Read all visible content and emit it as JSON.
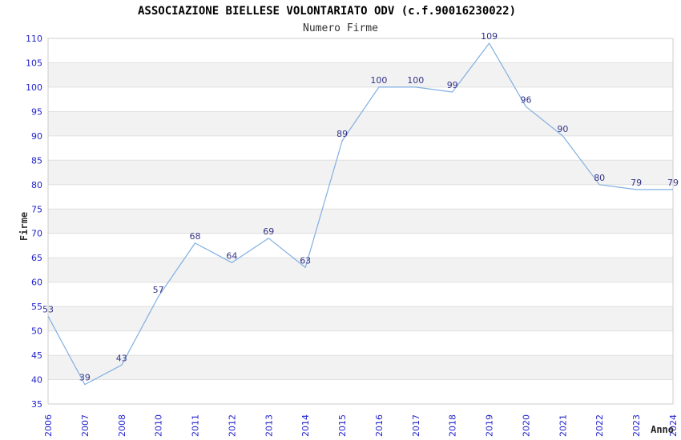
{
  "chart_data": {
    "type": "line",
    "title": "ASSOCIAZIONE BIELLESE VOLONTARIATO ODV (c.f.90016230022)",
    "subtitle": "Numero Firme",
    "xlabel": "Anno",
    "ylabel": "Firme",
    "categories": [
      "2006",
      "2007",
      "2008",
      "2010",
      "2011",
      "2012",
      "2013",
      "2014",
      "2015",
      "2016",
      "2017",
      "2018",
      "2019",
      "2020",
      "2021",
      "2022",
      "2023",
      "2024"
    ],
    "values": [
      53,
      39,
      43,
      57,
      68,
      64,
      69,
      63,
      89,
      100,
      100,
      99,
      109,
      96,
      90,
      80,
      79,
      79
    ],
    "ylim": [
      35,
      110
    ],
    "ytick_step": 5,
    "ytick_labels": [
      "35",
      "40",
      "45",
      "50",
      "55",
      "60",
      "65",
      "70",
      "75",
      "80",
      "85",
      "90",
      "95",
      "100",
      "105",
      "110"
    ],
    "grid": true,
    "banded_background": true,
    "legend": "none",
    "x_tick_rotation": -90,
    "colors": {
      "line": "#82afe1",
      "data_label": "#333388",
      "tick_label": "#2222cc",
      "band": "#f2f2f2",
      "gridline": "#e0e0e0",
      "border": "#cccccc",
      "title": "#000000",
      "subtitle": "#333333",
      "axis_title": "#333333",
      "background": "#ffffff"
    }
  }
}
